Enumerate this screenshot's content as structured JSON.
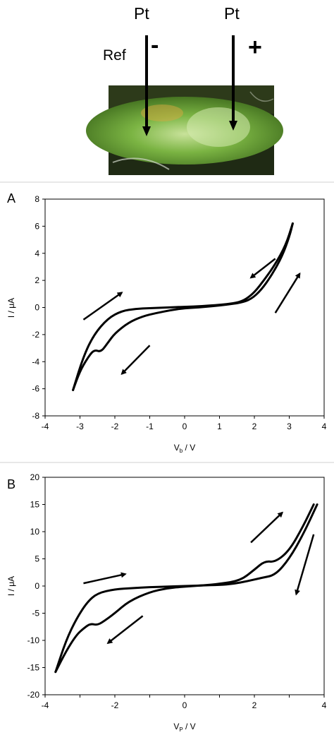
{
  "header": {
    "electrode_left": "Pt",
    "electrode_right": "Pt",
    "reference": "Ref",
    "sign_left": "-",
    "sign_right": "+"
  },
  "photo": {
    "colors": {
      "stem": "#6aa63a",
      "stem_light": "#b8d88a",
      "background": "#1f2a14"
    }
  },
  "panels": [
    {
      "letter": "A",
      "xlabel_main": "V",
      "xlabel_sub": "b",
      "xlabel_unit": " / V",
      "ylabel": "I / μA"
    },
    {
      "letter": "B",
      "xlabel_main": "V",
      "xlabel_sub": "P",
      "xlabel_unit": " / V",
      "ylabel": "I / μA"
    }
  ],
  "chart_data": [
    {
      "type": "line",
      "title": "",
      "xlabel": "Vb / V",
      "ylabel": "I / μA",
      "xlim": [
        -4,
        4
      ],
      "ylim": [
        -8,
        8
      ],
      "xticks": [
        "-4",
        "-3",
        "-2",
        "-1",
        "0",
        "1",
        "2",
        "3",
        "4"
      ],
      "yticks": [
        "8",
        "6",
        "4",
        "2",
        "0",
        "-2",
        "-4",
        "-6",
        "-8"
      ],
      "grid": false,
      "series": [
        {
          "x": [
            -3.2,
            -3.0,
            -2.8,
            -2.6,
            -2.4,
            -2.2,
            -2.0,
            -1.6,
            -1.2,
            -0.8,
            -0.4,
            0,
            0.4,
            0.8,
            1.2,
            1.6,
            1.9,
            2.2,
            2.5,
            2.8,
            3.0,
            3.1
          ],
          "y": [
            -6.1,
            -4.7,
            -3.8,
            -3.1,
            -3.3,
            -2.6,
            -1.9,
            -1.1,
            -0.65,
            -0.4,
            -0.2,
            -0.05,
            0.0,
            0.1,
            0.2,
            0.35,
            0.6,
            1.3,
            2.4,
            3.8,
            5.2,
            6.2
          ]
        },
        {
          "x": [
            3.1,
            2.9,
            2.6,
            2.3,
            2.0,
            1.7,
            1.4,
            1.0,
            0.5,
            0,
            -0.5,
            -1.0,
            -1.4,
            -1.8,
            -2.2,
            -2.6,
            -2.9,
            -3.2
          ],
          "y": [
            6.2,
            4.6,
            3.2,
            2.1,
            1.1,
            0.5,
            0.3,
            0.2,
            0.1,
            0.05,
            0.0,
            -0.05,
            -0.1,
            -0.25,
            -0.8,
            -2.0,
            -3.6,
            -6.1
          ]
        }
      ],
      "arrows": [
        {
          "from": [
            -2.9,
            -0.9
          ],
          "to": [
            -1.8,
            1.1
          ]
        },
        {
          "from": [
            2.6,
            3.6
          ],
          "to": [
            1.9,
            2.2
          ]
        },
        {
          "from": [
            2.6,
            -0.4
          ],
          "to": [
            3.3,
            2.5
          ]
        },
        {
          "from": [
            -1.0,
            -2.8
          ],
          "to": [
            -1.8,
            -4.9
          ]
        }
      ]
    },
    {
      "type": "line",
      "title": "",
      "xlabel": "VP / V",
      "ylabel": "I / μA",
      "xlim": [
        -4,
        4
      ],
      "ylim": [
        -20,
        20
      ],
      "xticks": [
        "-4",
        "",
        "-2",
        "",
        "0",
        "",
        "2",
        "",
        "4"
      ],
      "yticks": [
        "20",
        "15",
        "10",
        "5",
        "0",
        "-5",
        "-10",
        "-15",
        "-20"
      ],
      "grid": false,
      "series": [
        {
          "x": [
            -3.7,
            -3.4,
            -3.1,
            -2.9,
            -2.7,
            -2.5,
            -2.3,
            -2.0,
            -1.6,
            -1.0,
            -0.5,
            0,
            0.5,
            1.0,
            1.6,
            2.0,
            2.3,
            2.6,
            3.0,
            3.4,
            3.7
          ],
          "y": [
            -15.8,
            -12.0,
            -9.0,
            -7.8,
            -6.9,
            -7.2,
            -6.4,
            -5.0,
            -2.8,
            -1.1,
            -0.4,
            -0.1,
            0.1,
            0.4,
            1.0,
            3.0,
            4.6,
            4.4,
            6.5,
            11.0,
            15.0
          ]
        },
        {
          "x": [
            3.8,
            3.4,
            3.0,
            2.6,
            2.2,
            1.8,
            1.4,
            1.0,
            0.5,
            0,
            -0.5,
            -1.0,
            -1.5,
            -2.0,
            -2.5,
            -2.8,
            -3.1,
            -3.4,
            -3.7
          ],
          "y": [
            15.0,
            9.5,
            5.0,
            2.0,
            1.5,
            0.9,
            0.4,
            0.2,
            0.1,
            0.0,
            -0.1,
            -0.2,
            -0.4,
            -0.6,
            -1.3,
            -3.0,
            -6.0,
            -10.0,
            -15.8
          ]
        }
      ],
      "arrows": [
        {
          "from": [
            -2.9,
            0.5
          ],
          "to": [
            -1.7,
            2.2
          ]
        },
        {
          "from": [
            1.9,
            8.0
          ],
          "to": [
            2.8,
            13.5
          ]
        },
        {
          "from": [
            3.7,
            9.5
          ],
          "to": [
            3.2,
            -1.5
          ]
        },
        {
          "from": [
            -1.2,
            -5.5
          ],
          "to": [
            -2.2,
            -10.5
          ]
        }
      ]
    }
  ]
}
